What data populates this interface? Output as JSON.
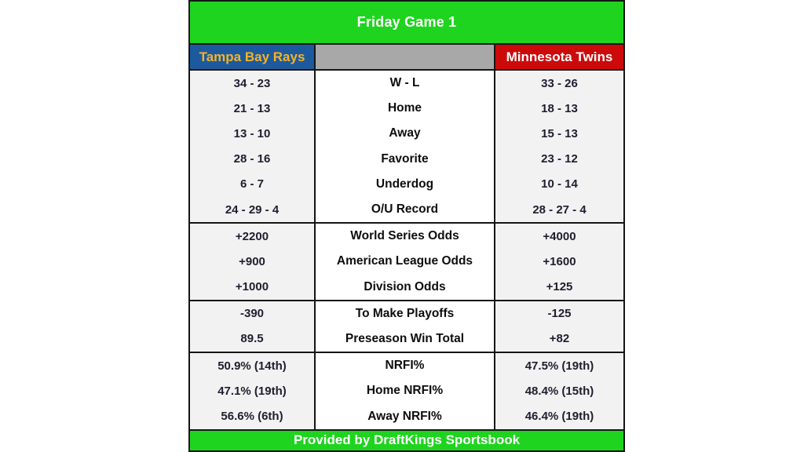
{
  "chart_data": {
    "type": "table",
    "title": "Friday Game 1",
    "columns": {
      "left_team": "Tampa Bay Rays",
      "center": "",
      "right_team": "Minnesota Twins"
    },
    "sections": [
      {
        "rows": [
          {
            "left": "34 - 23",
            "label": "W - L",
            "right": "33 - 26"
          },
          {
            "left": "21 - 13",
            "label": "Home",
            "right": "18 - 13"
          },
          {
            "left": "13 - 10",
            "label": "Away",
            "right": "15 - 13"
          },
          {
            "left": "28 - 16",
            "label": "Favorite",
            "right": "23 - 12"
          },
          {
            "left": "6 - 7",
            "label": "Underdog",
            "right": "10 - 14"
          },
          {
            "left": "24 - 29 - 4",
            "label": "O/U Record",
            "right": "28 - 27 - 4"
          }
        ]
      },
      {
        "rows": [
          {
            "left": "+2200",
            "label": "World Series Odds",
            "right": "+4000"
          },
          {
            "left": "+900",
            "label": "American League Odds",
            "right": "+1600"
          },
          {
            "left": "+1000",
            "label": "Division Odds",
            "right": "+125"
          }
        ]
      },
      {
        "rows": [
          {
            "left": "-390",
            "label": "To Make Playoffs",
            "right": "-125"
          },
          {
            "left": "89.5",
            "label": "Preseason Win Total",
            "right": "+82"
          }
        ]
      },
      {
        "rows": [
          {
            "left": "50.9% (14th)",
            "label": "NRFI%",
            "right": "47.5% (19th)"
          },
          {
            "left": "47.1% (19th)",
            "label": "Home NRFI%",
            "right": "48.4% (15th)"
          },
          {
            "left": "56.6% (6th)",
            "label": "Away NRFI%",
            "right": "46.4% (19th)"
          }
        ]
      }
    ],
    "footer": "Provided by DraftKings Sportsbook"
  },
  "colors": {
    "header_green": "#1ed41e",
    "rays_blue": "#1c5a9d",
    "rays_gold": "#f5b324",
    "twins_red": "#cc0a0a",
    "gray_header": "#a8a8a8",
    "side_bg": "#f2f2f2",
    "border": "#151515",
    "value_text": "#1e1e30",
    "label_text": "#0d0d0d"
  }
}
